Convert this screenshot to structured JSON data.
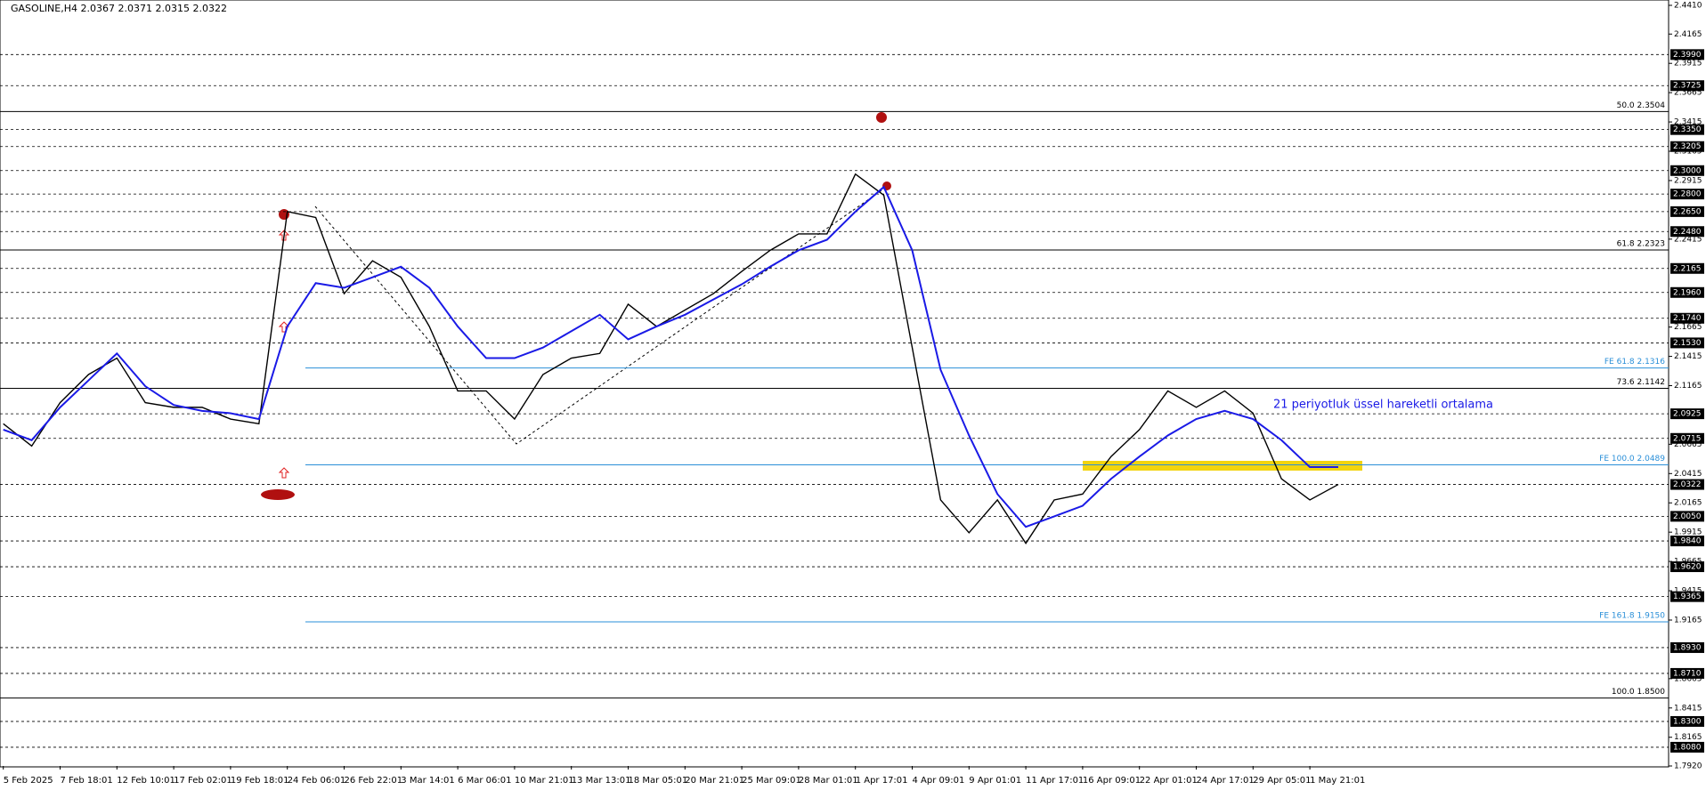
{
  "chart_data": {
    "type": "line",
    "title": "GASOLINE,H4  2.0367 2.0371 2.0315 2.0322",
    "annotation": "21 periyotluk üssel hareketli ortalama",
    "categories": [
      "5 Feb 2025",
      null,
      "7 Feb 18:01",
      null,
      "12 Feb 10:01",
      null,
      "17 Feb 02:01",
      null,
      "19 Feb 18:01",
      null,
      "24 Feb 06:01",
      null,
      "26 Feb 22:01",
      null,
      "3 Mar 14:01",
      null,
      "6 Mar 06:01",
      null,
      "10 Mar 21:01",
      null,
      "13 Mar 13:01",
      null,
      "18 Mar 05:01",
      null,
      "20 Mar 21:01",
      null,
      "25 Mar 09:01",
      null,
      "28 Mar 01:01",
      null,
      "1 Apr 17:01",
      null,
      "4 Apr 09:01",
      null,
      "9 Apr 01:01",
      null,
      "11 Apr 17:01",
      null,
      "16 Apr 09:01",
      null,
      "22 Apr 01:01",
      null,
      "24 Apr 17:01",
      null,
      "29 Apr 05:01",
      null,
      "1 May 21:01",
      null
    ],
    "series": [
      {
        "color": "#000000",
        "values": [
          2.084,
          2.065,
          2.102,
          2.126,
          2.14,
          2.102,
          2.098,
          2.098,
          2.088,
          2.084,
          2.265,
          2.26,
          2.195,
          2.223,
          2.209,
          2.167,
          2.112,
          2.112,
          2.088,
          2.126,
          2.14,
          2.144,
          2.186,
          2.167,
          2.181,
          2.195,
          2.214,
          2.232,
          2.246,
          2.246,
          2.297,
          2.279,
          2.149,
          2.019,
          1.991,
          2.019,
          1.982,
          2.019,
          2.024,
          2.056,
          2.079,
          2.112,
          2.098,
          2.112,
          2.093,
          2.037,
          2.019,
          2.0322
        ]
      },
      {
        "color": "#1a1ae6",
        "values": [
          2.079,
          2.07,
          2.098,
          2.121,
          2.144,
          2.116,
          2.1,
          2.095,
          2.093,
          2.088,
          2.167,
          2.204,
          2.2,
          2.209,
          2.218,
          2.2,
          2.167,
          2.14,
          2.14,
          2.149,
          2.163,
          2.177,
          2.156,
          2.167,
          2.177,
          2.19,
          2.203,
          2.218,
          2.232,
          2.241,
          2.265,
          2.286,
          2.232,
          2.13,
          2.074,
          2.024,
          1.996,
          2.005,
          2.014,
          2.037,
          2.056,
          2.074,
          2.088,
          2.095,
          2.088,
          2.07,
          2.047,
          2.047
        ]
      }
    ],
    "ylim": [
      1.792,
      2.441
    ],
    "yticks": [
      {
        "value": 2.441,
        "label": "2.4410"
      },
      2.4165,
      2.3915,
      2.3665,
      2.3415,
      2.3165,
      2.2915,
      2.2415,
      2.1665,
      2.1415,
      2.1165,
      2.0665,
      2.0415,
      2.0165,
      1.9915,
      1.9665,
      1.9415,
      1.9165,
      1.8665,
      1.8415,
      1.8165,
      {
        "value": 1.792,
        "label": "1.7920"
      }
    ],
    "levels": [
      {
        "value": 2.399,
        "label": "2.3990"
      },
      2.3725,
      {
        "value": 2.335,
        "label": "2.3350"
      },
      2.3205,
      {
        "value": 2.3,
        "label": "2.3000"
      },
      {
        "value": 2.28,
        "label": "2.2800"
      },
      {
        "value": 2.265,
        "label": "2.2650"
      },
      {
        "value": 2.248,
        "label": "2.2480"
      },
      2.2165,
      {
        "value": 2.196,
        "label": "2.1960"
      },
      {
        "value": 2.174,
        "label": "2.1740"
      },
      {
        "value": 2.153,
        "label": "2.1530"
      },
      2.0925,
      2.0715,
      2.0322,
      {
        "value": 2.005,
        "label": "2.0050"
      },
      {
        "value": 1.984,
        "label": "1.9840"
      },
      {
        "value": 1.962,
        "label": "1.9620"
      },
      1.9365,
      {
        "value": 1.893,
        "label": "1.8930"
      },
      {
        "value": 1.871,
        "label": "1.8710"
      },
      {
        "value": 1.83,
        "label": "1.8300"
      },
      {
        "value": 1.808,
        "label": "1.8080"
      }
    ],
    "fib_levels": [
      {
        "value": 2.3504,
        "label": "50.0 2.3504"
      },
      {
        "value": 2.2323,
        "label": "61.8 2.2323"
      },
      {
        "value": 2.1142,
        "label": "73.6 2.1142"
      },
      {
        "value": 1.85,
        "label": "100.0 1.8500"
      }
    ],
    "fe_levels": [
      {
        "value": 2.1316,
        "label": "FE 61.8 2.1316"
      },
      {
        "value": 2.0489,
        "label": "FE 100.0 2.0489"
      },
      {
        "value": 1.915,
        "label": "FE 161.8 1.9150"
      }
    ],
    "fe_color": "#2a8fd8"
  }
}
